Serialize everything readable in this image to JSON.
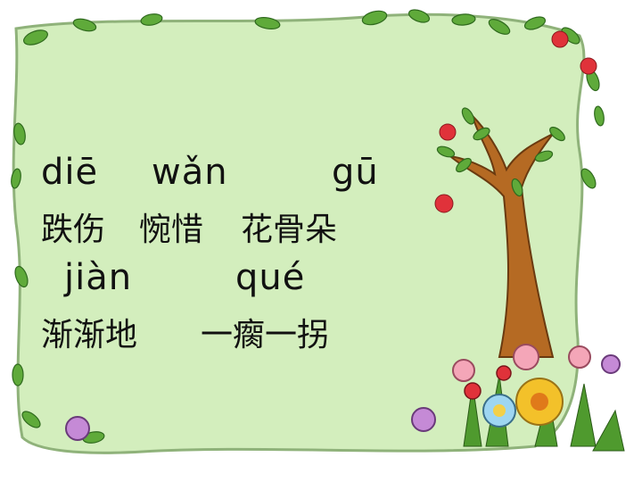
{
  "slide": {
    "pinyin_row1": {
      "die": "diē",
      "wan": "wǎn",
      "gu": "gū"
    },
    "hanzi_row1": {
      "word1": "跌伤",
      "word2": "惋惜",
      "word3": "花骨朵"
    },
    "pinyin_row2": {
      "jian": "jiàn",
      "que": "qué"
    },
    "hanzi_row2": {
      "word1": "渐渐地",
      "word2": "一瘸一拐"
    }
  },
  "colors": {
    "board_fill": "#d3eebd",
    "board_edge": "#8fb27a",
    "leaf_green": "#5faa3a",
    "trunk_brown": "#b56a23",
    "apple_red": "#e0323a"
  },
  "decorations": [
    "leaf-border",
    "apple-tree",
    "apples",
    "flowers",
    "grass"
  ]
}
